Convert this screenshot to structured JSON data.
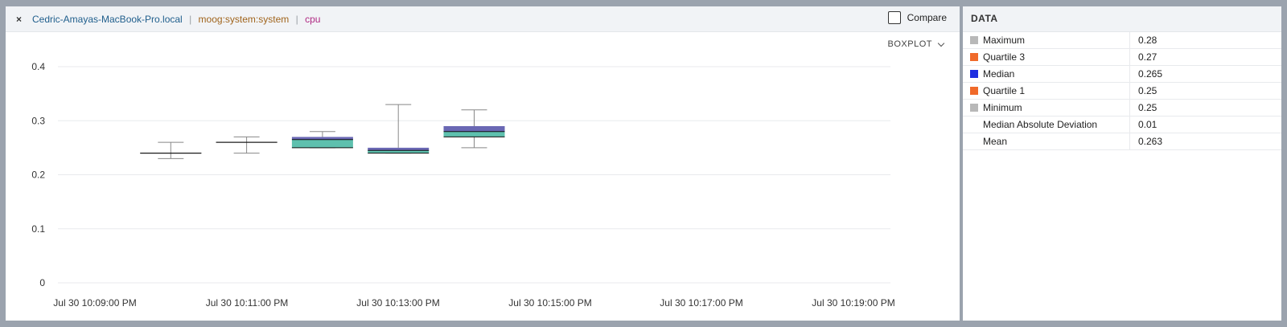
{
  "header": {
    "close": "×",
    "host": "Cedric-Amayas-MacBook-Pro.local",
    "metric": "moog:system:system",
    "field": "cpu",
    "separator": "|",
    "compare_label": "Compare",
    "view_mode": "BOXPLOT"
  },
  "data_panel": {
    "title": "DATA",
    "rows": [
      {
        "label": "Maximum",
        "value": "0.28",
        "color": "#b8b8b8"
      },
      {
        "label": "Quartile 3",
        "value": "0.27",
        "color": "#f06a2a"
      },
      {
        "label": "Median",
        "value": "0.265",
        "color": "#1f2fe0"
      },
      {
        "label": "Quartile 1",
        "value": "0.25",
        "color": "#f06a2a"
      },
      {
        "label": "Minimum",
        "value": "0.25",
        "color": "#b8b8b8"
      },
      {
        "label": "Median Absolute Deviation",
        "value": "0.01",
        "color": ""
      },
      {
        "label": "Mean",
        "value": "0.263",
        "color": ""
      }
    ]
  },
  "chart_data": {
    "type": "boxplot",
    "ylim": [
      0,
      0.4
    ],
    "y_ticks": [
      "0",
      "0.1",
      "0.2",
      "0.3",
      "0.4"
    ],
    "x_ticks": [
      "Jul 30 10:09:00 PM",
      "Jul 30 10:11:00 PM",
      "Jul 30 10:13:00 PM",
      "Jul 30 10:15:00 PM",
      "Jul 30 10:17:00 PM",
      "Jul 30 10:19:00 PM"
    ],
    "grid": true,
    "colors": {
      "upper_box": "#6a68b4",
      "lower_box": "#5ec0ae",
      "whisker": "#888888",
      "median": "#111111"
    },
    "boxes": [
      {
        "time": "Jul 30 10:10:00 PM",
        "min": 0.23,
        "q1": 0.24,
        "median": 0.24,
        "q3": 0.24,
        "max": 0.26
      },
      {
        "time": "Jul 30 10:11:00 PM",
        "min": 0.24,
        "q1": 0.26,
        "median": 0.26,
        "q3": 0.26,
        "max": 0.27
      },
      {
        "time": "Jul 30 10:12:00 PM",
        "min": 0.25,
        "q1": 0.25,
        "median": 0.265,
        "q3": 0.27,
        "max": 0.28
      },
      {
        "time": "Jul 30 10:13:00 PM",
        "min": 0.24,
        "q1": 0.24,
        "median": 0.245,
        "q3": 0.25,
        "max": 0.33
      },
      {
        "time": "Jul 30 10:14:00 PM",
        "min": 0.25,
        "q1": 0.27,
        "median": 0.28,
        "q3": 0.29,
        "max": 0.32
      }
    ]
  }
}
